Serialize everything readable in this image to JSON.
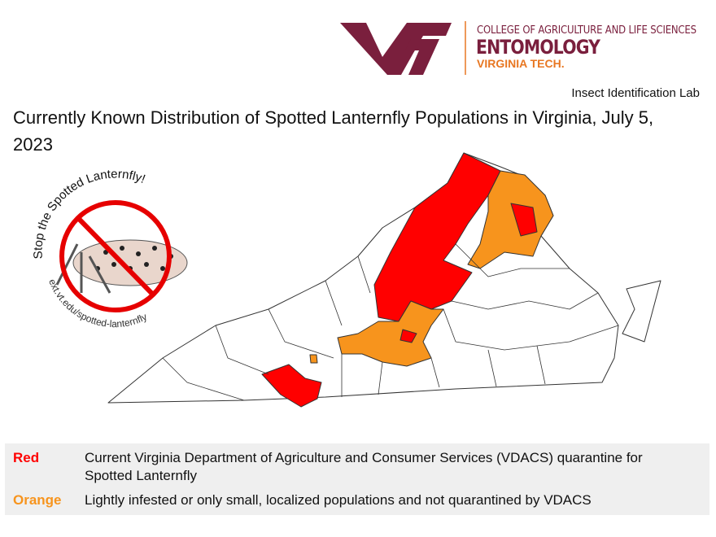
{
  "logo": {
    "college": "COLLEGE OF AGRICULTURE AND LIFE SCIENCES",
    "department": "ENTOMOLOGY",
    "university": "VIRGINIA TECH."
  },
  "lab": "Insect Identification Lab",
  "title": "Currently Known Distribution of Spotted Lanternfly Populations in Virginia, July 5, 2023",
  "badge": {
    "slogan": "Stop the Spotted Lanternfly!",
    "url": "ext.vt.edu/spotted-lanternfly"
  },
  "legend": [
    {
      "label": "Red",
      "color": "#ff0000",
      "description": "Current Virginia Department of Agriculture and Consumer Services (VDACS) quarantine for Spotted Lanternfly"
    },
    {
      "label": "Orange",
      "color": "#f7941d",
      "description": "Lightly infested or only small, localized populations and not quarantined by VDACS"
    }
  ]
}
